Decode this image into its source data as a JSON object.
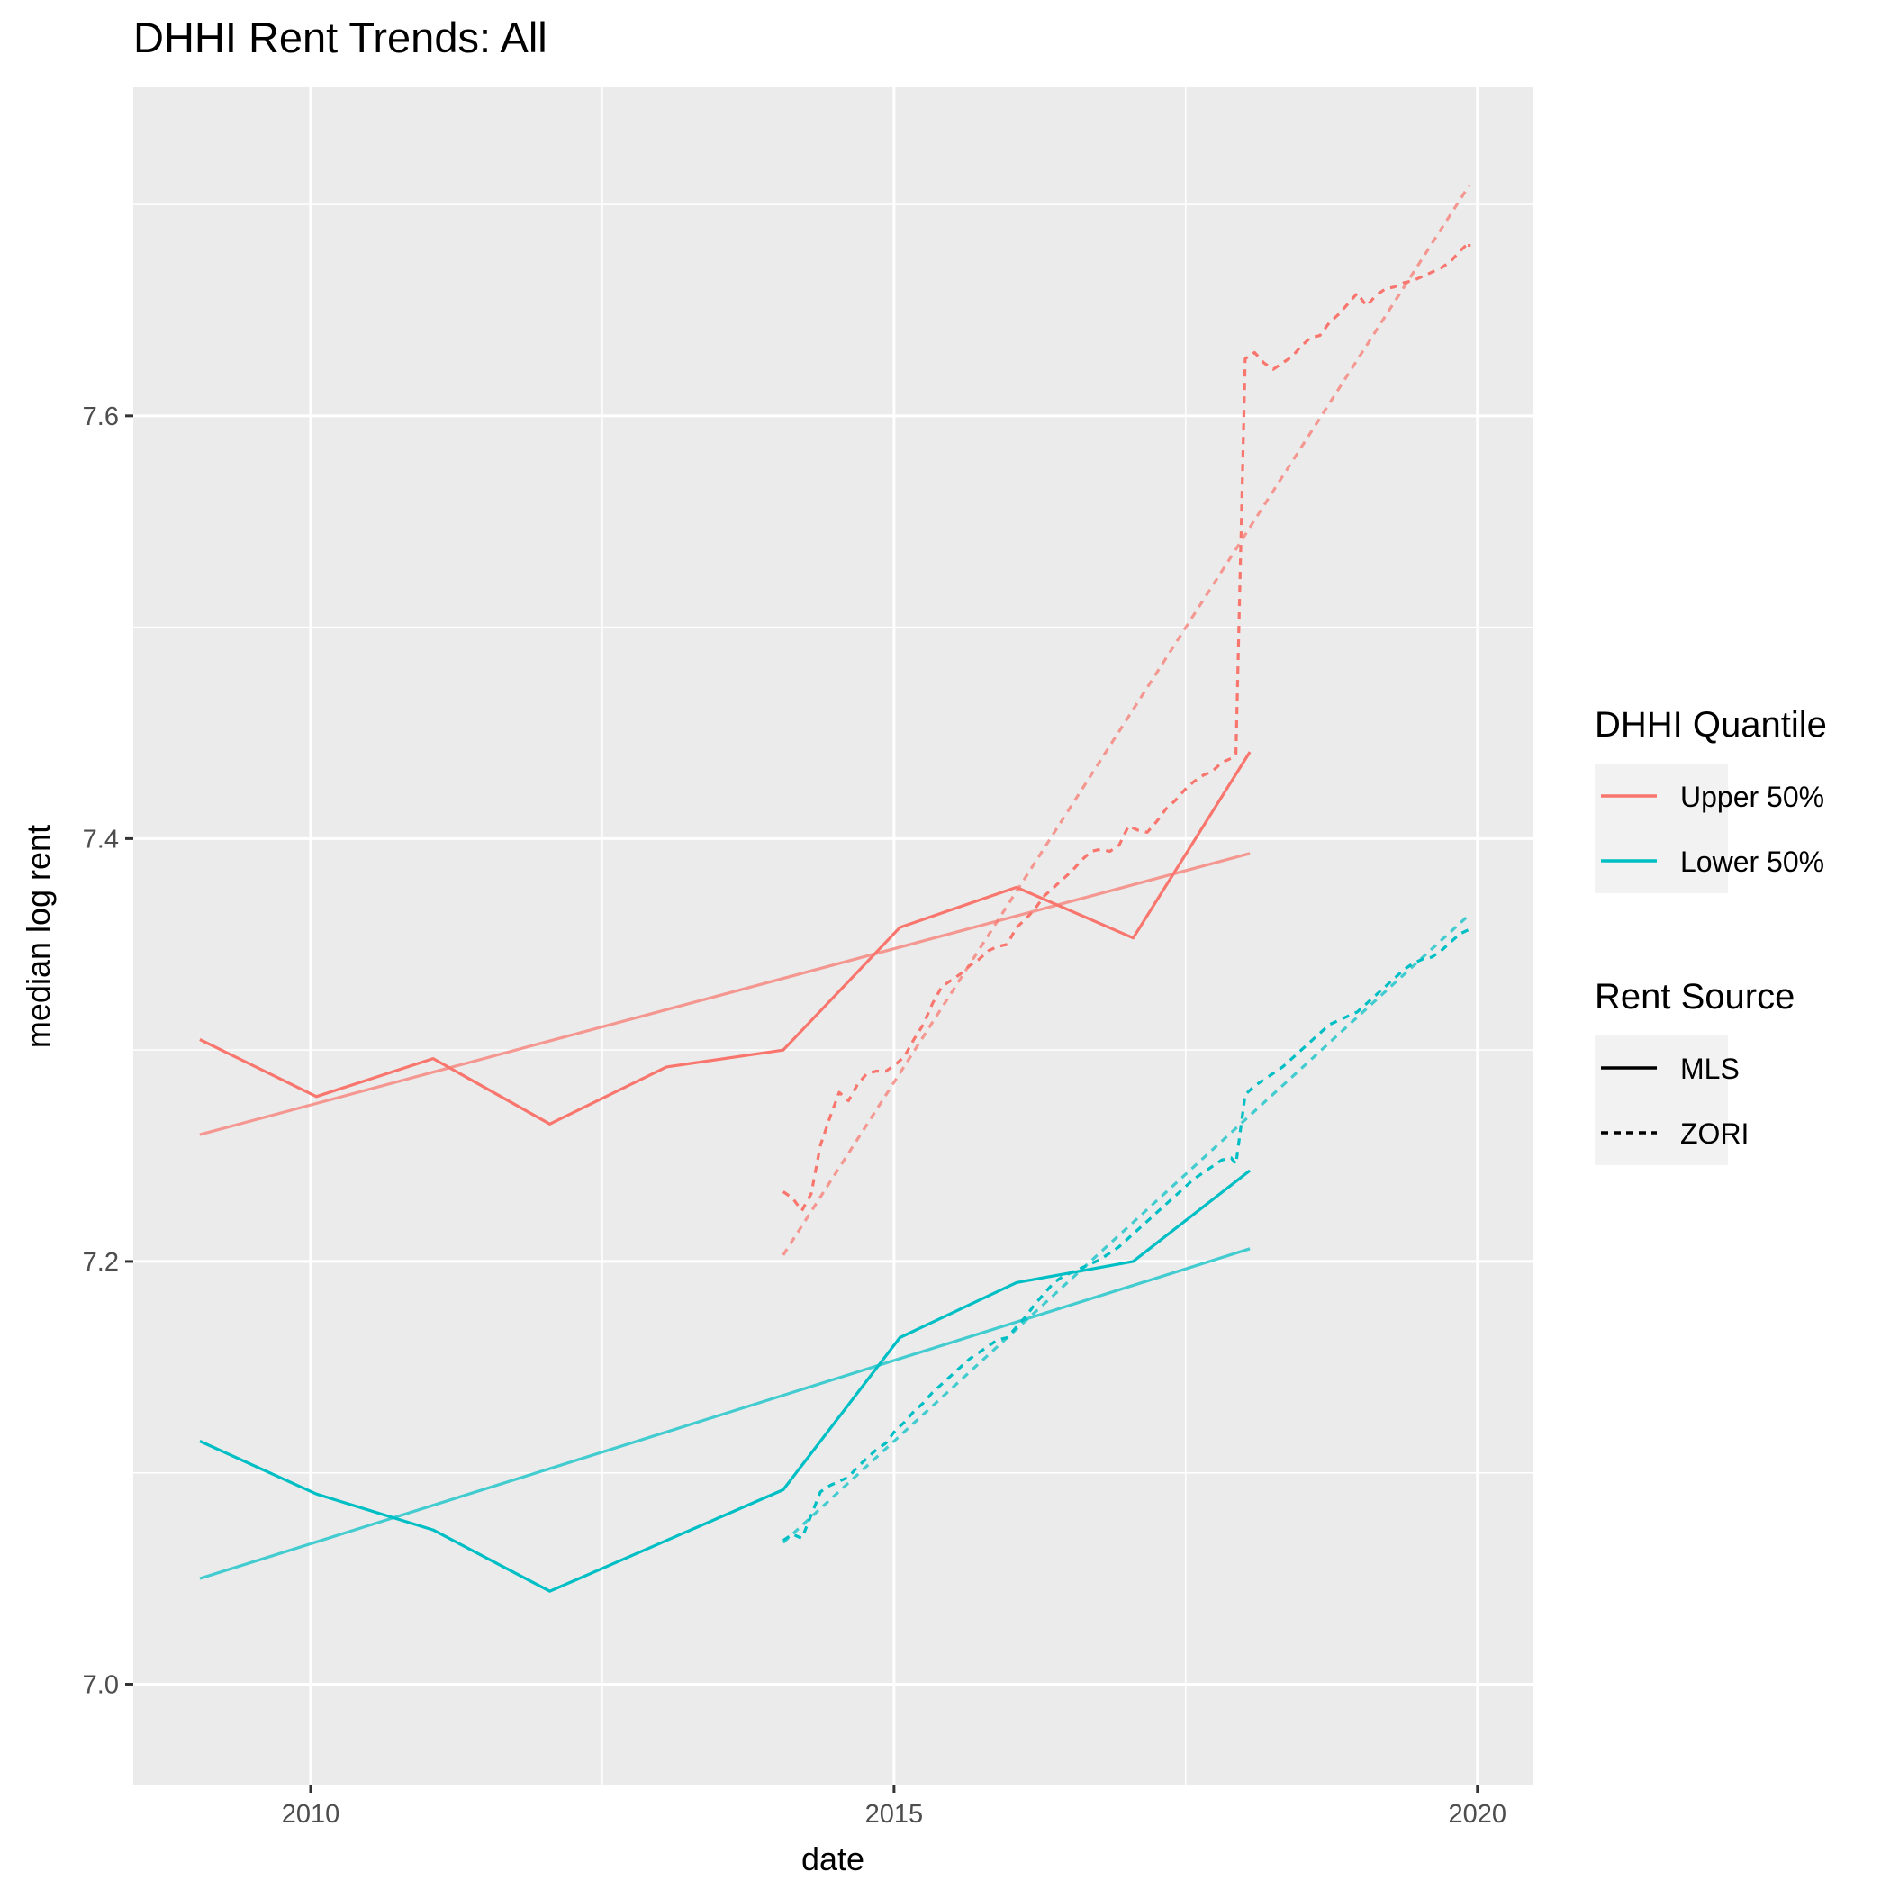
{
  "chart_data": {
    "type": "line",
    "title": "DHHI Rent Trends: All",
    "xlabel": "date",
    "ylabel": "median log rent",
    "xlim": [
      2008.48,
      2020.48
    ],
    "ylim": [
      6.9525,
      7.7554
    ],
    "x_ticks": [
      2010,
      2015,
      2020
    ],
    "y_ticks": [
      7.0,
      7.2,
      7.4,
      7.6
    ],
    "x_tick_labels": [
      "2010",
      "2015",
      "2020"
    ],
    "y_tick_labels": [
      "7.0",
      "7.2",
      "7.4",
      "7.6"
    ],
    "grid": true,
    "legend_position": "right",
    "legends": {
      "color": {
        "title": "DHHI Quantile",
        "items": [
          {
            "label": "Upper 50%",
            "color": "#F8766D"
          },
          {
            "label": "Lower 50%",
            "color": "#00BFC4"
          }
        ]
      },
      "linetype": {
        "title": "Rent Source",
        "items": [
          {
            "label": "MLS",
            "dash": "solid"
          },
          {
            "label": "ZORI",
            "dash": "dashed"
          }
        ]
      }
    },
    "series": [
      {
        "quantile": "Upper 50%",
        "source": "MLS",
        "kind": "data",
        "color": "#F8766D",
        "points": [
          [
            2009.05,
            7.305
          ],
          [
            2010.05,
            7.278
          ],
          [
            2011.05,
            7.296
          ],
          [
            2012.05,
            7.265
          ],
          [
            2013.05,
            7.292
          ],
          [
            2014.05,
            7.3
          ],
          [
            2015.05,
            7.358
          ],
          [
            2016.05,
            7.377
          ],
          [
            2017.05,
            7.353
          ],
          [
            2018.05,
            7.441
          ]
        ]
      },
      {
        "quantile": "Upper 50%",
        "source": "MLS",
        "kind": "trend",
        "color": "#F8766D",
        "points": [
          [
            2009.05,
            7.26
          ],
          [
            2018.05,
            7.393
          ]
        ]
      },
      {
        "quantile": "Lower 50%",
        "source": "MLS",
        "kind": "data",
        "color": "#00BFC4",
        "points": [
          [
            2009.05,
            7.115
          ],
          [
            2010.05,
            7.09
          ],
          [
            2011.05,
            7.073
          ],
          [
            2012.05,
            7.044
          ],
          [
            2013.05,
            7.068
          ],
          [
            2014.05,
            7.092
          ],
          [
            2015.05,
            7.164
          ],
          [
            2016.05,
            7.19
          ],
          [
            2017.05,
            7.2
          ],
          [
            2018.05,
            7.243
          ]
        ]
      },
      {
        "quantile": "Lower 50%",
        "source": "MLS",
        "kind": "trend",
        "color": "#00BFC4",
        "points": [
          [
            2009.05,
            7.05
          ],
          [
            2018.05,
            7.206
          ]
        ]
      },
      {
        "quantile": "Upper 50%",
        "source": "ZORI",
        "kind": "data",
        "color": "#F8766D",
        "points": [
          [
            2014.05,
            7.233
          ],
          [
            2014.13,
            7.23
          ],
          [
            2014.21,
            7.224
          ],
          [
            2014.29,
            7.232
          ],
          [
            2014.37,
            7.255
          ],
          [
            2014.45,
            7.268
          ],
          [
            2014.53,
            7.28
          ],
          [
            2014.61,
            7.276
          ],
          [
            2014.69,
            7.284
          ],
          [
            2014.77,
            7.289
          ],
          [
            2014.85,
            7.29
          ],
          [
            2014.93,
            7.29
          ],
          [
            2015.01,
            7.293
          ],
          [
            2015.09,
            7.297
          ],
          [
            2015.17,
            7.305
          ],
          [
            2015.25,
            7.312
          ],
          [
            2015.33,
            7.322
          ],
          [
            2015.41,
            7.33
          ],
          [
            2015.49,
            7.333
          ],
          [
            2015.57,
            7.336
          ],
          [
            2015.65,
            7.34
          ],
          [
            2015.73,
            7.343
          ],
          [
            2015.81,
            7.347
          ],
          [
            2015.89,
            7.349
          ],
          [
            2015.97,
            7.35
          ],
          [
            2016.05,
            7.358
          ],
          [
            2016.13,
            7.362
          ],
          [
            2016.21,
            7.367
          ],
          [
            2016.29,
            7.373
          ],
          [
            2016.37,
            7.377
          ],
          [
            2016.45,
            7.381
          ],
          [
            2016.53,
            7.385
          ],
          [
            2016.61,
            7.39
          ],
          [
            2016.69,
            7.394
          ],
          [
            2016.77,
            7.395
          ],
          [
            2016.85,
            7.394
          ],
          [
            2016.93,
            7.397
          ],
          [
            2017.01,
            7.406
          ],
          [
            2017.09,
            7.404
          ],
          [
            2017.17,
            7.403
          ],
          [
            2017.25,
            7.408
          ],
          [
            2017.33,
            7.414
          ],
          [
            2017.41,
            7.418
          ],
          [
            2017.49,
            7.423
          ],
          [
            2017.57,
            7.427
          ],
          [
            2017.65,
            7.43
          ],
          [
            2017.73,
            7.432
          ],
          [
            2017.81,
            7.436
          ],
          [
            2017.89,
            7.438
          ],
          [
            2017.93,
            7.44
          ],
          [
            2018.01,
            7.627
          ],
          [
            2018.09,
            7.63
          ],
          [
            2018.17,
            7.625
          ],
          [
            2018.25,
            7.622
          ],
          [
            2018.33,
            7.625
          ],
          [
            2018.41,
            7.628
          ],
          [
            2018.49,
            7.633
          ],
          [
            2018.57,
            7.637
          ],
          [
            2018.65,
            7.638
          ],
          [
            2018.73,
            7.644
          ],
          [
            2018.81,
            7.648
          ],
          [
            2018.89,
            7.653
          ],
          [
            2018.97,
            7.658
          ],
          [
            2019.05,
            7.652
          ],
          [
            2019.13,
            7.657
          ],
          [
            2019.21,
            7.66
          ],
          [
            2019.29,
            7.661
          ],
          [
            2019.37,
            7.663
          ],
          [
            2019.45,
            7.664
          ],
          [
            2019.53,
            7.666
          ],
          [
            2019.61,
            7.668
          ],
          [
            2019.69,
            7.67
          ],
          [
            2019.77,
            7.673
          ],
          [
            2019.85,
            7.678
          ],
          [
            2019.93,
            7.682
          ],
          [
            2019.93,
            7.68
          ]
        ]
      },
      {
        "quantile": "Upper 50%",
        "source": "ZORI",
        "kind": "trend",
        "color": "#F8766D",
        "points": [
          [
            2014.05,
            7.203
          ],
          [
            2019.93,
            7.709
          ]
        ]
      },
      {
        "quantile": "Lower 50%",
        "source": "ZORI",
        "kind": "data",
        "color": "#00BFC4",
        "points": [
          [
            2014.05,
            7.068
          ],
          [
            2014.13,
            7.071
          ],
          [
            2014.21,
            7.069
          ],
          [
            2014.29,
            7.08
          ],
          [
            2014.37,
            7.091
          ],
          [
            2014.45,
            7.094
          ],
          [
            2014.53,
            7.096
          ],
          [
            2014.61,
            7.098
          ],
          [
            2014.69,
            7.103
          ],
          [
            2014.77,
            7.107
          ],
          [
            2014.85,
            7.111
          ],
          [
            2014.93,
            7.114
          ],
          [
            2015.01,
            7.12
          ],
          [
            2015.09,
            7.124
          ],
          [
            2015.17,
            7.129
          ],
          [
            2015.25,
            7.133
          ],
          [
            2015.33,
            7.138
          ],
          [
            2015.41,
            7.142
          ],
          [
            2015.49,
            7.146
          ],
          [
            2015.57,
            7.15
          ],
          [
            2015.65,
            7.154
          ],
          [
            2015.73,
            7.157
          ],
          [
            2015.81,
            7.16
          ],
          [
            2015.89,
            7.163
          ],
          [
            2015.97,
            7.164
          ],
          [
            2016.05,
            7.169
          ],
          [
            2016.13,
            7.174
          ],
          [
            2016.21,
            7.18
          ],
          [
            2016.29,
            7.185
          ],
          [
            2016.37,
            7.19
          ],
          [
            2016.45,
            7.193
          ],
          [
            2016.53,
            7.195
          ],
          [
            2016.61,
            7.197
          ],
          [
            2016.69,
            7.199
          ],
          [
            2016.77,
            7.201
          ],
          [
            2016.85,
            7.204
          ],
          [
            2016.93,
            7.207
          ],
          [
            2017.01,
            7.211
          ],
          [
            2017.09,
            7.215
          ],
          [
            2017.17,
            7.219
          ],
          [
            2017.25,
            7.223
          ],
          [
            2017.33,
            7.227
          ],
          [
            2017.41,
            7.231
          ],
          [
            2017.49,
            7.235
          ],
          [
            2017.57,
            7.239
          ],
          [
            2017.65,
            7.242
          ],
          [
            2017.73,
            7.245
          ],
          [
            2017.81,
            7.248
          ],
          [
            2017.89,
            7.249
          ],
          [
            2017.93,
            7.246
          ],
          [
            2018.01,
            7.279
          ],
          [
            2018.09,
            7.283
          ],
          [
            2018.17,
            7.286
          ],
          [
            2018.25,
            7.289
          ],
          [
            2018.33,
            7.292
          ],
          [
            2018.41,
            7.296
          ],
          [
            2018.49,
            7.3
          ],
          [
            2018.57,
            7.304
          ],
          [
            2018.65,
            7.308
          ],
          [
            2018.73,
            7.312
          ],
          [
            2018.81,
            7.314
          ],
          [
            2018.89,
            7.316
          ],
          [
            2018.97,
            7.318
          ],
          [
            2019.05,
            7.322
          ],
          [
            2019.13,
            7.326
          ],
          [
            2019.21,
            7.33
          ],
          [
            2019.29,
            7.334
          ],
          [
            2019.37,
            7.338
          ],
          [
            2019.45,
            7.341
          ],
          [
            2019.53,
            7.343
          ],
          [
            2019.61,
            7.344
          ],
          [
            2019.69,
            7.347
          ],
          [
            2019.77,
            7.351
          ],
          [
            2019.85,
            7.355
          ],
          [
            2019.93,
            7.357
          ]
        ]
      },
      {
        "quantile": "Lower 50%",
        "source": "ZORI",
        "kind": "trend",
        "color": "#00BFC4",
        "points": [
          [
            2014.05,
            7.067
          ],
          [
            2019.93,
            7.364
          ]
        ]
      }
    ]
  }
}
